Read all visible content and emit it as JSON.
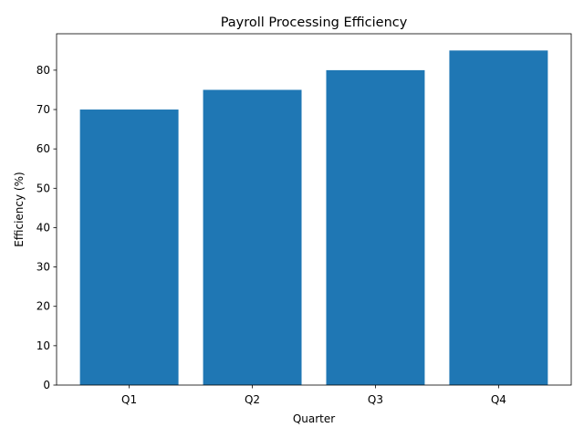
{
  "chart_data": {
    "type": "bar",
    "title": "Payroll Processing Efficiency",
    "xlabel": "Quarter",
    "ylabel": "Efficiency (%)",
    "categories": [
      "Q1",
      "Q2",
      "Q3",
      "Q4"
    ],
    "values": [
      70,
      75,
      80,
      85
    ],
    "ylim": [
      0,
      89.25
    ],
    "yticks": [
      0,
      10,
      20,
      30,
      40,
      50,
      60,
      70,
      80
    ],
    "grid": false,
    "legend": "none",
    "bar_color": "#1f77b4"
  }
}
